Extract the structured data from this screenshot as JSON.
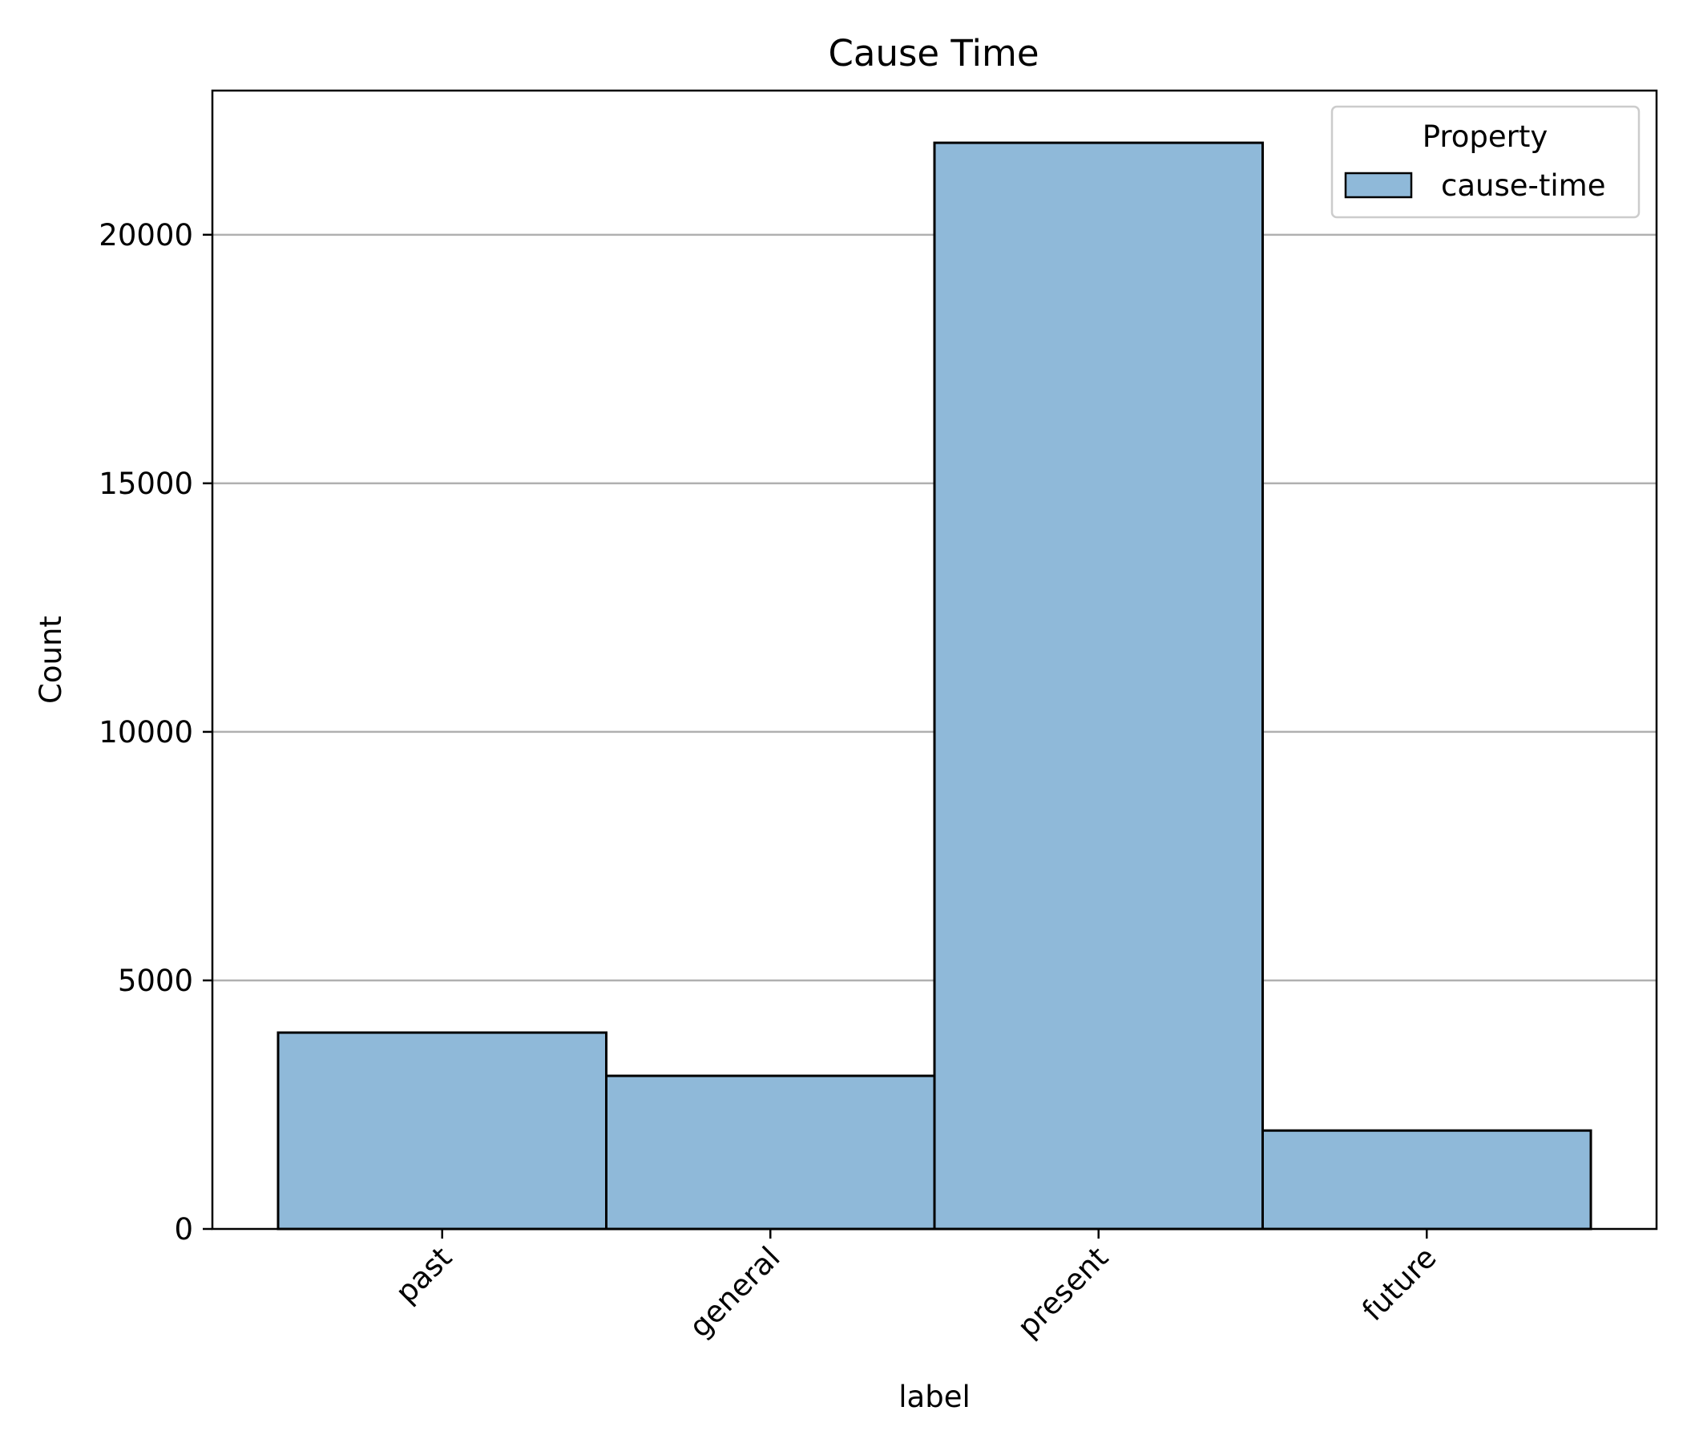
{
  "chart_data": {
    "type": "bar",
    "title": "Cause Time",
    "xlabel": "label",
    "ylabel": "Count",
    "categories": [
      "past",
      "general",
      "present",
      "future"
    ],
    "series": [
      {
        "name": "cause-time",
        "values": [
          3950,
          3080,
          21850,
          1980
        ]
      }
    ],
    "ylim": [
      0,
      22900
    ],
    "yticks": [
      0,
      5000,
      10000,
      15000,
      20000
    ],
    "ytick_labels": [
      "0",
      "5000",
      "10000",
      "15000",
      "20000"
    ],
    "grid": "horizontal",
    "legend": {
      "title": "Property",
      "placement": "top-right",
      "entries": [
        "cause-time"
      ]
    },
    "colors": {
      "bar_fill": "#8fb9d9",
      "bar_edge": "#000000",
      "grid": "#b0b0b0"
    }
  }
}
